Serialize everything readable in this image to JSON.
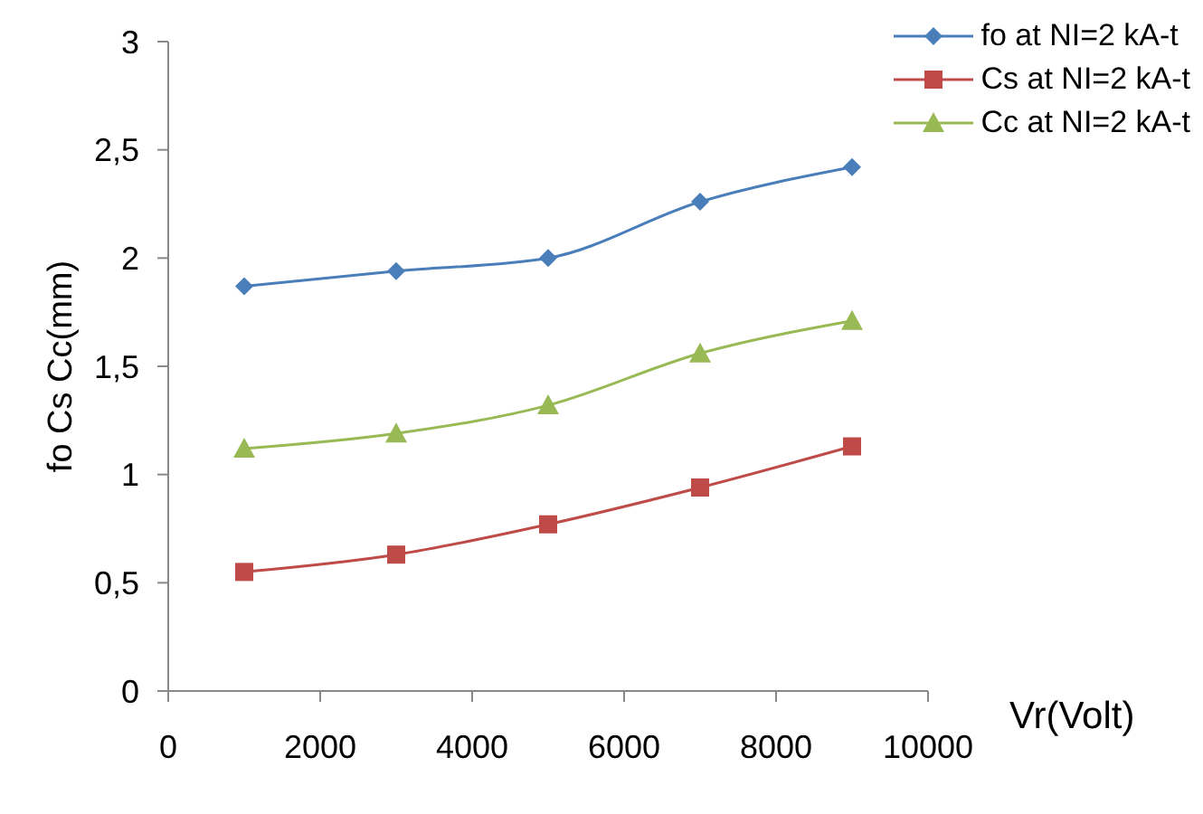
{
  "chart_data": {
    "type": "line",
    "xlabel": "Vr(Volt)",
    "ylabel": "fo Cs Cc(mm)",
    "x": [
      1000,
      3000,
      5000,
      7000,
      9000
    ],
    "series": [
      {
        "name": "fo at NI=2 kA-t",
        "color": "#4a7ebb",
        "marker": "diamond",
        "values": [
          1.87,
          1.94,
          2.0,
          2.26,
          2.42
        ]
      },
      {
        "name": "Cs at NI=2 kA-t",
        "color": "#be4b48",
        "marker": "square",
        "values": [
          0.55,
          0.63,
          0.77,
          0.94,
          1.13
        ]
      },
      {
        "name": "Cc at NI=2 kA-t",
        "color": "#98b954",
        "marker": "triangle",
        "values": [
          1.12,
          1.19,
          1.32,
          1.56,
          1.71
        ]
      }
    ],
    "xlim": [
      0,
      10000
    ],
    "xticks": [
      0,
      2000,
      4000,
      6000,
      8000,
      10000
    ],
    "ylim": [
      0,
      3
    ],
    "yticks": [
      0,
      {
        "value": 0.5,
        "label": "0,5"
      },
      1,
      {
        "value": 1.5,
        "label": "1,5"
      },
      2,
      {
        "value": 2.5,
        "label": "2,5"
      },
      3
    ],
    "grid": false,
    "legend": "top right"
  }
}
